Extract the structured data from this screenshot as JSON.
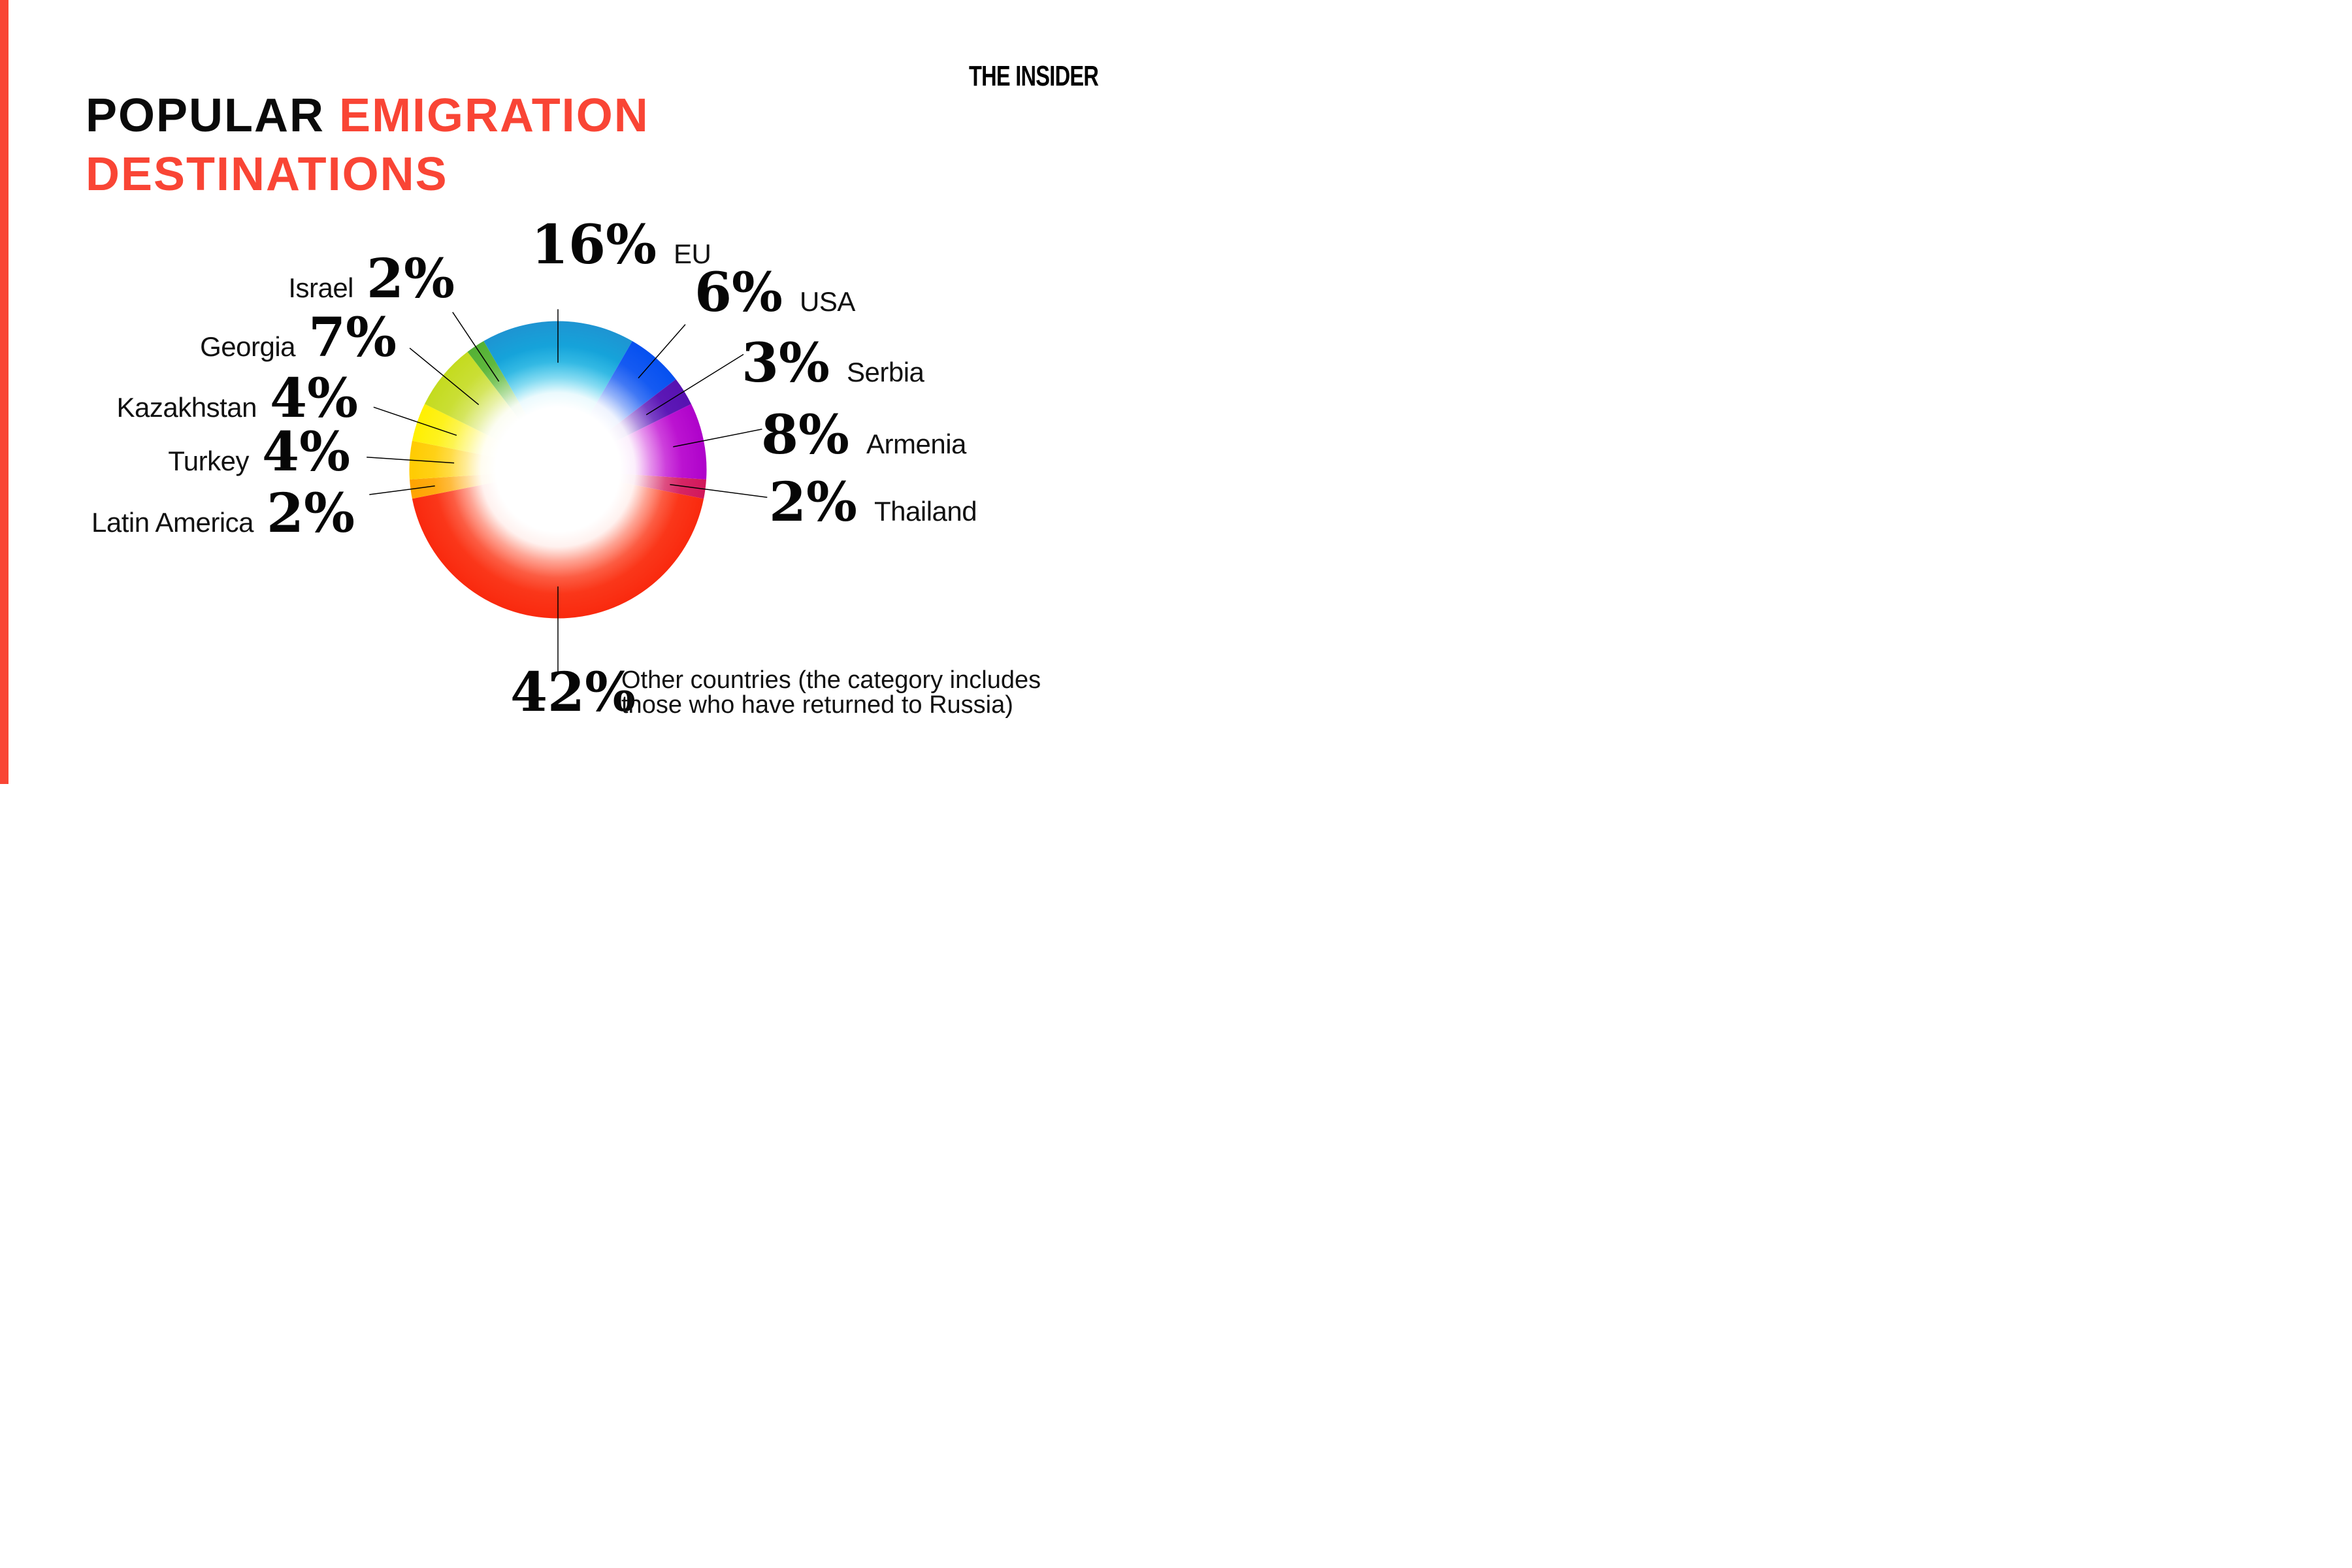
{
  "page": {
    "background": "#ffffff",
    "accent_bar_color": "#f94535",
    "leader_line_color": "#000000"
  },
  "header": {
    "title_word_black": "POPULAR",
    "title_word_red": "EMIGRATION",
    "title_line2": "DESTINATIONS",
    "title_red_color": "#f94535",
    "brand": "THE INSIDER"
  },
  "chart_data": {
    "type": "pie",
    "subtype": "donut",
    "title": "Popular emigration destinations",
    "unit": "%",
    "start_angle_deg": -30,
    "donut_hole_ratio": 0.42,
    "values_sum_shown": 96,
    "segments": [
      {
        "label": "EU",
        "value": 16,
        "value_label": "16%",
        "color_outer": "#1e94d2",
        "color_inner": "#00c9ee"
      },
      {
        "label": "USA",
        "value": 6,
        "value_label": "6%",
        "color_outer": "#0550f0",
        "color_inner": "#3e74f6"
      },
      {
        "label": "Serbia",
        "value": 3,
        "value_label": "3%",
        "color_outer": "#5711b0",
        "color_inner": "#6b2bc6"
      },
      {
        "label": "Armenia",
        "value": 8,
        "value_label": "8%",
        "color_outer": "#ae02ca",
        "color_inner": "#dd3ee2"
      },
      {
        "label": "Thailand",
        "value": 2,
        "value_label": "2%",
        "color_outer": "#d2175a",
        "color_inner": "#e04a80"
      },
      {
        "label": "Other countries (the category includes those who have returned to Russia)",
        "value": 42,
        "value_label": "42%",
        "color_outer": "#f9290e",
        "color_inner": "#ff5a38",
        "note_lines": [
          "Other countries (the category includes",
          "those who have returned to Russia)"
        ]
      },
      {
        "label": "Latin America",
        "value": 2,
        "value_label": "2%",
        "color_outer": "#ffa300",
        "color_inner": "#ffbe3c"
      },
      {
        "label": "Turkey",
        "value": 4,
        "value_label": "4%",
        "color_outer": "#ffcb00",
        "color_inner": "#ffe14e"
      },
      {
        "label": "Kazakhstan",
        "value": 4,
        "value_label": "4%",
        "color_outer": "#fff000",
        "color_inner": "#fbf56a"
      },
      {
        "label": "Georgia",
        "value": 7,
        "value_label": "7%",
        "color_outer": "#c4db1e",
        "color_inner": "#d9e86e"
      },
      {
        "label": "Israel",
        "value": 2,
        "value_label": "2%",
        "color_outer": "#54b134",
        "color_inner": "#7ccb58"
      }
    ],
    "legend_position": "around",
    "grid": false
  }
}
